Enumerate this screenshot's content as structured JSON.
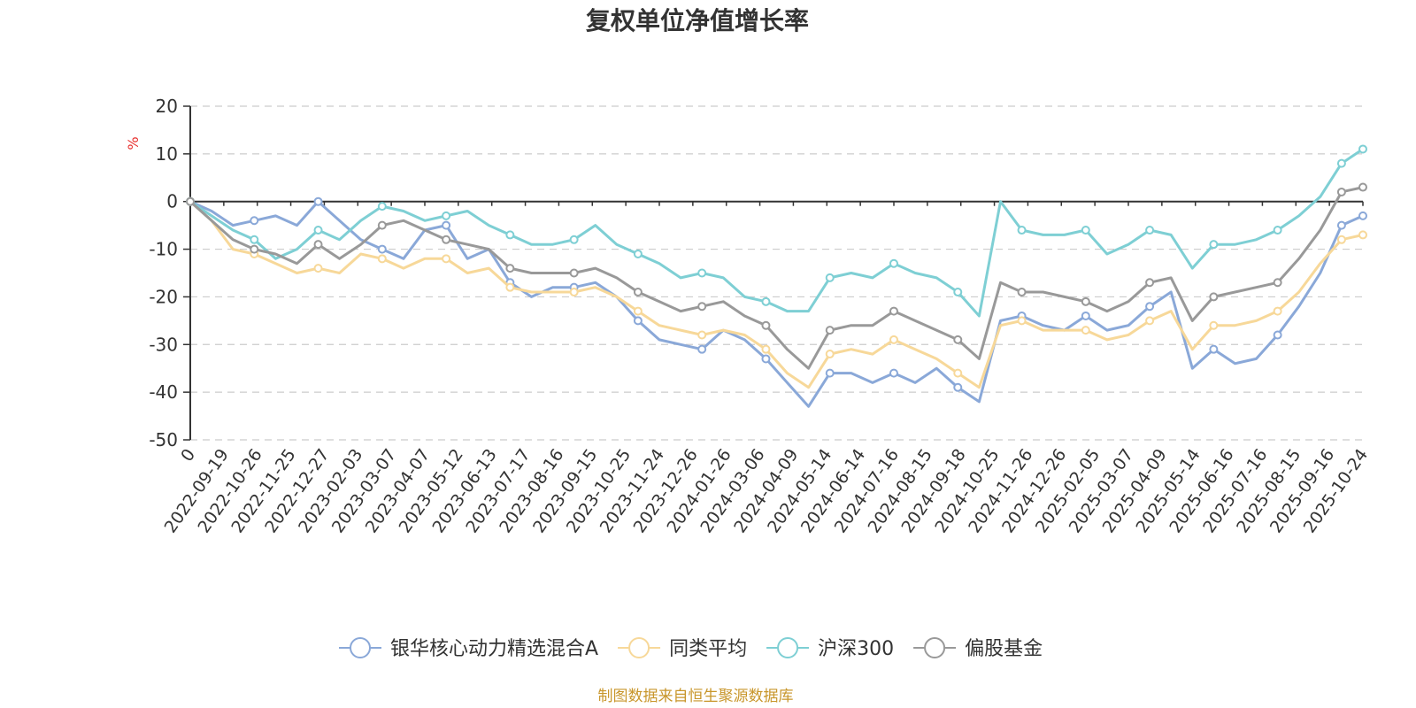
{
  "chart_data": {
    "type": "line",
    "title": "复权单位净值增长率",
    "ylabel": "%",
    "ylim": [
      -50,
      20
    ],
    "yticks": [
      20,
      10,
      0,
      -10,
      -20,
      -30,
      -40,
      -50
    ],
    "x_tick_labels": [
      "0",
      "2022-09-19",
      "2022-10-26",
      "2022-11-25",
      "2022-12-27",
      "2023-02-03",
      "2023-03-07",
      "2023-04-07",
      "2023-05-12",
      "2023-06-13",
      "2023-07-17",
      "2023-08-16",
      "2023-09-15",
      "2023-10-25",
      "2023-11-24",
      "2023-12-26",
      "2024-01-26",
      "2024-03-06",
      "2024-04-09",
      "2024-05-14",
      "2024-06-14",
      "2024-07-16",
      "2024-08-15",
      "2024-09-18",
      "2024-10-25",
      "2024-11-26",
      "2024-12-26",
      "2025-02-05",
      "2025-03-07",
      "2025-04-09",
      "2025-05-14",
      "2025-06-16",
      "2025-07-16",
      "2025-08-15",
      "2025-09-16",
      "2025-10-24"
    ],
    "grid": true,
    "legend_position": "bottom",
    "series": [
      {
        "name": "银华核心动力精选混合A",
        "color": "#8aa8d8",
        "values": [
          0,
          -2,
          -5,
          -4,
          -3,
          -5,
          0,
          -4,
          -8,
          -10,
          -12,
          -6,
          -5,
          -12,
          -10,
          -17,
          -20,
          -18,
          -18,
          -17,
          -20,
          -25,
          -29,
          -30,
          -31,
          -27,
          -29,
          -33,
          -38,
          -43,
          -36,
          -36,
          -38,
          -36,
          -38,
          -35,
          -39,
          -42,
          -25,
          -24,
          -26,
          -27,
          -24,
          -27,
          -26,
          -22,
          -19,
          -35,
          -31,
          -34,
          -33,
          -28,
          -22,
          -15,
          -5,
          -3
        ]
      },
      {
        "name": "同类平均",
        "color": "#f7d899",
        "values": [
          0,
          -4,
          -10,
          -11,
          -13,
          -15,
          -14,
          -15,
          -11,
          -12,
          -14,
          -12,
          -12,
          -15,
          -14,
          -18,
          -19,
          -19,
          -19,
          -18,
          -20,
          -23,
          -26,
          -27,
          -28,
          -27,
          -28,
          -31,
          -36,
          -39,
          -32,
          -31,
          -32,
          -29,
          -31,
          -33,
          -36,
          -39,
          -26,
          -25,
          -27,
          -27,
          -27,
          -29,
          -28,
          -25,
          -23,
          -31,
          -26,
          -26,
          -25,
          -23,
          -19,
          -13,
          -8,
          -7
        ]
      },
      {
        "name": "沪深300",
        "color": "#7ecfd4",
        "values": [
          0,
          -3,
          -6,
          -8,
          -12,
          -10,
          -6,
          -8,
          -4,
          -1,
          -2,
          -4,
          -3,
          -2,
          -5,
          -7,
          -9,
          -9,
          -8,
          -5,
          -9,
          -11,
          -13,
          -16,
          -15,
          -16,
          -20,
          -21,
          -23,
          -23,
          -16,
          -15,
          -16,
          -13,
          -15,
          -16,
          -19,
          -24,
          0,
          -6,
          -7,
          -7,
          -6,
          -11,
          -9,
          -6,
          -7,
          -14,
          -9,
          -9,
          -8,
          -6,
          -3,
          1,
          8,
          11
        ]
      },
      {
        "name": "偏股基金",
        "color": "#999999",
        "values": [
          0,
          -4,
          -8,
          -10,
          -11,
          -13,
          -9,
          -12,
          -9,
          -5,
          -4,
          -6,
          -8,
          -9,
          -10,
          -14,
          -15,
          -15,
          -15,
          -14,
          -16,
          -19,
          -21,
          -23,
          -22,
          -21,
          -24,
          -26,
          -31,
          -35,
          -27,
          -26,
          -26,
          -23,
          -25,
          -27,
          -29,
          -33,
          -17,
          -19,
          -19,
          -20,
          -21,
          -23,
          -21,
          -17,
          -16,
          -25,
          -20,
          -19,
          -18,
          -17,
          -12,
          -6,
          2,
          3
        ]
      }
    ]
  },
  "source_note": "制图数据来自恒生聚源数据库"
}
